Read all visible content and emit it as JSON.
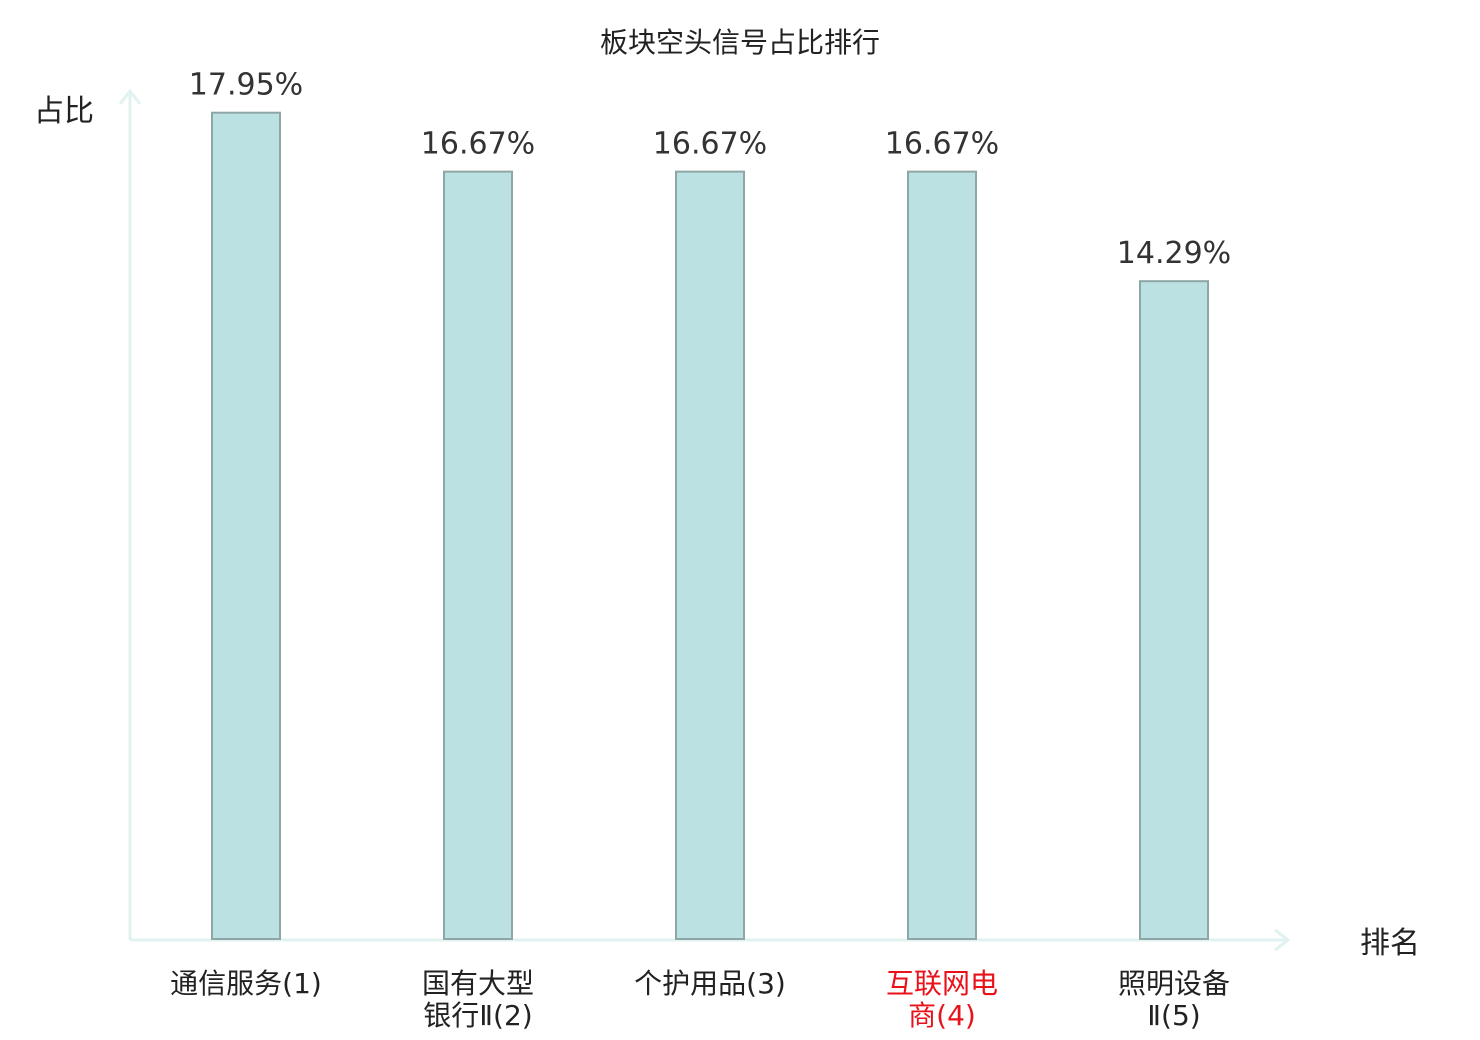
{
  "chart_data": {
    "type": "bar",
    "title": "板块空头信号占比排行",
    "ylabel": "占比",
    "xlabel": "排名",
    "categories": [
      {
        "lines": [
          "通信服务(1)"
        ],
        "highlight": false
      },
      {
        "lines": [
          "国有大型",
          "银行Ⅱ(2)"
        ],
        "highlight": false
      },
      {
        "lines": [
          "个护用品(3)"
        ],
        "highlight": false
      },
      {
        "lines": [
          "互联网电",
          "商(4)"
        ],
        "highlight": true
      },
      {
        "lines": [
          "照明设备",
          "Ⅱ(5)"
        ],
        "highlight": false
      }
    ],
    "values": [
      17.95,
      16.67,
      16.67,
      16.67,
      14.29
    ],
    "value_labels": [
      "17.95%",
      "16.67%",
      "16.67%",
      "16.67%",
      "14.29%"
    ],
    "ylim": [
      0,
      18.4
    ],
    "grid": false,
    "legend": "none"
  },
  "colors": {
    "bar_fill": "#bce1e2",
    "bar_stroke": "#8fa6a6",
    "axis": "#e0f3f1",
    "label_normal": "#222222",
    "label_highlight": "#e8121a"
  }
}
